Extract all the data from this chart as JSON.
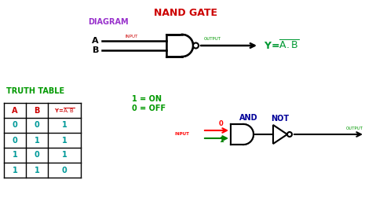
{
  "title": "NAND GATE",
  "title_color": "#cc0000",
  "diagram_label": "DIAGRAM",
  "diagram_label_color": "#9933cc",
  "truth_table_label": "TRUTH TABLE",
  "truth_table_label_color": "#009900",
  "legend_1_on": "1 = ON",
  "legend_0_off": "0 = OFF",
  "legend_color": "#009900",
  "and_label": "AND",
  "not_label": "NOT",
  "and_not_color": "#000099",
  "output_label": "OUTPUT",
  "output_color": "#009900",
  "input_label": "INPUT",
  "input_color": "#cc0000",
  "bg_color": "#ffffff",
  "table_headers": [
    "A",
    "B",
    "Y = A.B"
  ],
  "table_header_color": "#cc0000",
  "table_data": [
    [
      0,
      0,
      1
    ],
    [
      0,
      1,
      1
    ],
    [
      1,
      0,
      1
    ],
    [
      1,
      1,
      0
    ]
  ],
  "table_data_color": "#009999"
}
